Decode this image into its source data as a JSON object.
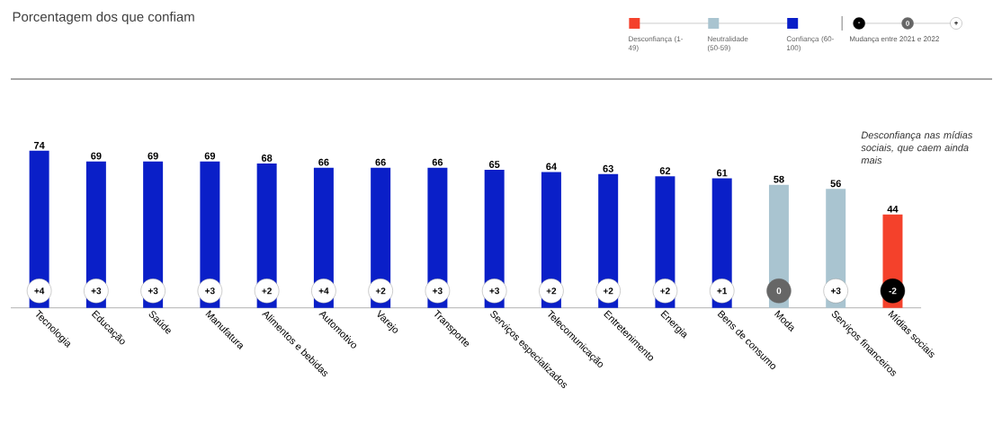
{
  "chart_data": {
    "type": "bar",
    "title": "Porcentagem dos que confiam",
    "categories": [
      "Tecnologia",
      "Educação",
      "Saúde",
      "Manufatura",
      "Alimentos e bebidas",
      "Automotivo",
      "Varejo",
      "Transporte",
      "Serviços especializados",
      "Telecomunicação",
      "Entretenimento",
      "Energia",
      "Bens de consumo",
      "Moda",
      "Serviços financeiros",
      "Mídias sociais"
    ],
    "series": [
      {
        "name": "Desconfiança (1-49)",
        "color": "#f4412b",
        "values": [
          null,
          null,
          null,
          null,
          null,
          null,
          null,
          null,
          null,
          null,
          null,
          null,
          null,
          null,
          null,
          44
        ]
      },
      {
        "name": "Neutralidade (50-59)",
        "color": "#a9c4d0",
        "values": [
          null,
          null,
          null,
          null,
          null,
          null,
          null,
          null,
          null,
          null,
          null,
          null,
          null,
          58,
          56,
          null
        ]
      },
      {
        "name": "Confiança (60-100)",
        "color": "#0a1fc8",
        "values": [
          74,
          69,
          69,
          69,
          68,
          66,
          66,
          66,
          65,
          64,
          63,
          62,
          61,
          null,
          null,
          null
        ]
      }
    ],
    "data_labels": true,
    "legend": "top right",
    "annotations": [
      "Desconfiança nas mídias sociais, que caem ainda mais",
      "-",
      "0",
      "+",
      "Mudança entre 2021 e 2022",
      {
        "text": "+4",
        "x": "Tecnologia",
        "y": 8
      },
      {
        "text": "+3",
        "x": "Educação",
        "y": 8
      },
      {
        "text": "+3",
        "x": "Saúde",
        "y": 8
      },
      {
        "text": "+3",
        "x": "Manufatura",
        "y": 8
      },
      {
        "text": "+2",
        "x": "Alimentos e bebidas",
        "y": 8
      },
      {
        "text": "+4",
        "x": "Automotivo",
        "y": 8
      },
      {
        "text": "+2",
        "x": "Varejo",
        "y": 8
      },
      {
        "text": "+3",
        "x": "Transporte",
        "y": 8
      },
      {
        "text": "+3",
        "x": "Serviços especializados",
        "y": 8
      },
      {
        "text": "+2",
        "x": "Telecomunicação",
        "y": 8
      },
      {
        "text": "+2",
        "x": "Entretenimento",
        "y": 8
      },
      {
        "text": "+2",
        "x": "Energia",
        "y": 8
      },
      {
        "text": "+1",
        "x": "Bens de consumo",
        "y": 8
      },
      {
        "text": "0",
        "x": "Moda",
        "y": 8
      },
      {
        "text": "+3",
        "x": "Serviços financeiros",
        "y": 8
      },
      {
        "text": "-2",
        "x": "Mídias sociais",
        "y": 8
      }
    ]
  }
}
